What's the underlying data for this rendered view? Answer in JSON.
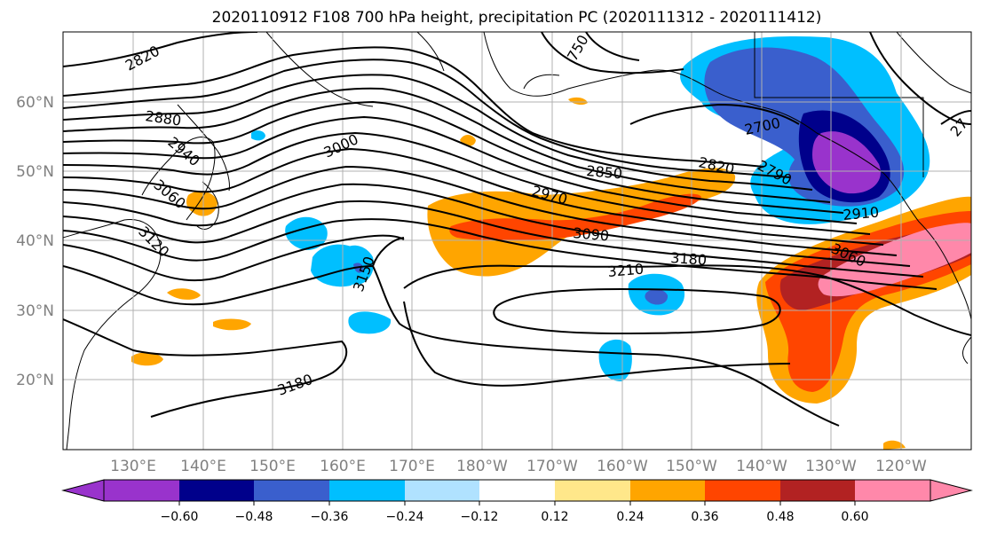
{
  "title": "2020110912 F108 700 hPa height, precipitation PC (2020111312 - 2020111412)",
  "map": {
    "lat_labels": [
      "60°N",
      "50°N",
      "40°N",
      "30°N",
      "20°N"
    ],
    "lon_labels": [
      "130°E",
      "140°E",
      "150°E",
      "160°E",
      "170°E",
      "180°W",
      "170°W",
      "160°W",
      "150°W",
      "140°W",
      "130°W",
      "120°W"
    ],
    "contour_labels": [
      "2820",
      "2880",
      "2940",
      "3000",
      "3060",
      "3120",
      "3150",
      "3180",
      "3210",
      "3180",
      "3090",
      "2970",
      "2850",
      "2820",
      "2790",
      "2700",
      "2910",
      "3060",
      "27",
      "750"
    ],
    "colors": {
      "contour": "#000000",
      "coast": "#000000",
      "grid": "#b0b0b0"
    }
  },
  "colorbar": {
    "colors": [
      "#9933cc",
      "#00008b",
      "#3a5fcd",
      "#00bfff",
      "#b0e2ff",
      "#ffffff",
      "#ffe78a",
      "#ffa500",
      "#ff4500",
      "#b22222",
      "#ff88aa"
    ],
    "tick_labels": [
      "−0.60",
      "−0.48",
      "−0.36",
      "−0.24",
      "−0.12",
      "0.12",
      "0.24",
      "0.36",
      "0.48",
      "0.60"
    ]
  }
}
